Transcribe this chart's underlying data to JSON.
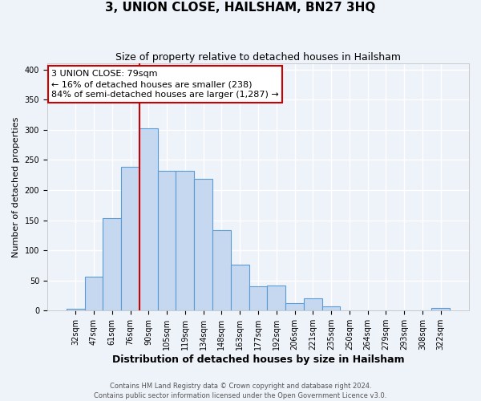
{
  "title": "3, UNION CLOSE, HAILSHAM, BN27 3HQ",
  "subtitle": "Size of property relative to detached houses in Hailsham",
  "xlabel": "Distribution of detached houses by size in Hailsham",
  "ylabel": "Number of detached properties",
  "bar_labels": [
    "32sqm",
    "47sqm",
    "61sqm",
    "76sqm",
    "90sqm",
    "105sqm",
    "119sqm",
    "134sqm",
    "148sqm",
    "163sqm",
    "177sqm",
    "192sqm",
    "206sqm",
    "221sqm",
    "235sqm",
    "250sqm",
    "264sqm",
    "279sqm",
    "293sqm",
    "308sqm",
    "322sqm"
  ],
  "bar_values": [
    3,
    57,
    154,
    238,
    303,
    232,
    232,
    219,
    133,
    76,
    40,
    42,
    13,
    20,
    7,
    0,
    0,
    0,
    0,
    0,
    4
  ],
  "bar_color": "#c5d8f0",
  "bar_edge_color": "#5b9bd5",
  "vline_x_index": 3,
  "vline_color": "#cc0000",
  "annotation_line1": "3 UNION CLOSE: 79sqm",
  "annotation_line2": "← 16% of detached houses are smaller (238)",
  "annotation_line3": "84% of semi-detached houses are larger (1,287) →",
  "annotation_box_color": "#ffffff",
  "annotation_box_edge_color": "#cc0000",
  "ylim": [
    0,
    410
  ],
  "yticks": [
    0,
    50,
    100,
    150,
    200,
    250,
    300,
    350,
    400
  ],
  "background_color": "#eef2f9",
  "grid_color": "#ffffff",
  "footer_line1": "Contains HM Land Registry data © Crown copyright and database right 2024.",
  "footer_line2": "Contains public sector information licensed under the Open Government Licence v3.0.",
  "title_fontsize": 11,
  "subtitle_fontsize": 9,
  "ylabel_fontsize": 8,
  "xlabel_fontsize": 9,
  "tick_fontsize": 7,
  "annotation_fontsize": 8,
  "footer_fontsize": 6
}
